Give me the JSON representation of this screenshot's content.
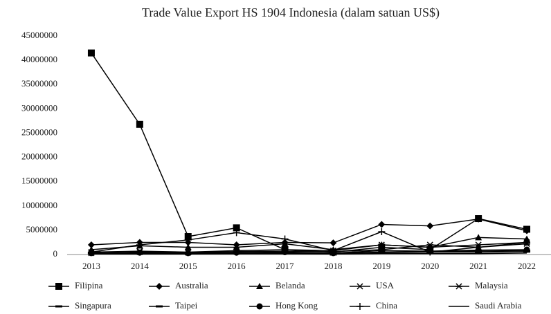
{
  "chart_data": {
    "type": "line",
    "title": "Trade Value Export HS 1904 Indonesia (dalam satuan US$)",
    "categories": [
      "2013",
      "2014",
      "2015",
      "2016",
      "2017",
      "2018",
      "2019",
      "2020",
      "2021",
      "2022"
    ],
    "series": [
      {
        "name": "Filipina",
        "color": "#000000",
        "marker": "square",
        "values": [
          41500000,
          26800000,
          3700000,
          5500000,
          1000000,
          500000,
          1500000,
          1000000,
          7400000,
          5200000
        ]
      },
      {
        "name": "Australia",
        "color": "#000000",
        "marker": "diamond",
        "values": [
          2000000,
          2500000,
          2500000,
          2000000,
          2500000,
          2400000,
          6200000,
          5900000,
          7300000,
          4900000
        ]
      },
      {
        "name": "Belanda",
        "color": "#000000",
        "marker": "triangle",
        "values": [
          1000000,
          1800000,
          1500000,
          1500000,
          2200000,
          1000000,
          2000000,
          1500000,
          3500000,
          3200000
        ]
      },
      {
        "name": "USA",
        "color": "#000000",
        "marker": "x",
        "values": [
          500000,
          700000,
          500000,
          800000,
          1000000,
          800000,
          2000000,
          1500000,
          2000000,
          2500000
        ]
      },
      {
        "name": "Malaysia",
        "color": "#000000",
        "marker": "star",
        "values": [
          300000,
          500000,
          400000,
          600000,
          700000,
          600000,
          1000000,
          2000000,
          1500000,
          2200000
        ]
      },
      {
        "name": "Singapura",
        "color": "#000000",
        "marker": "dash",
        "values": [
          200000,
          300000,
          200000,
          300000,
          400000,
          300000,
          500000,
          600000,
          700000,
          800000
        ]
      },
      {
        "name": "Taipei",
        "color": "#000000",
        "marker": "dash",
        "values": [
          150000,
          200000,
          150000,
          250000,
          300000,
          200000,
          400000,
          500000,
          500000,
          600000
        ]
      },
      {
        "name": "Hong Kong",
        "color": "#000000",
        "marker": "circle",
        "values": [
          300000,
          400000,
          300000,
          400000,
          500000,
          300000,
          800000,
          700000,
          900000,
          1000000
        ]
      },
      {
        "name": "China",
        "color": "#000000",
        "marker": "plus",
        "values": [
          500000,
          2000000,
          3000000,
          4500000,
          3200000,
          800000,
          4700000,
          500000,
          1500000,
          2500000
        ]
      },
      {
        "name": "Saudi Arabia",
        "color": "#000000",
        "marker": "none",
        "values": [
          100000,
          100000,
          100000,
          150000,
          150000,
          100000,
          200000,
          200000,
          200000,
          300000
        ]
      }
    ],
    "ylim": [
      0,
      45000000
    ],
    "yticks": [
      0,
      5000000,
      10000000,
      15000000,
      20000000,
      25000000,
      30000000,
      35000000,
      40000000,
      45000000
    ],
    "grid": false,
    "legend": "bottom"
  }
}
